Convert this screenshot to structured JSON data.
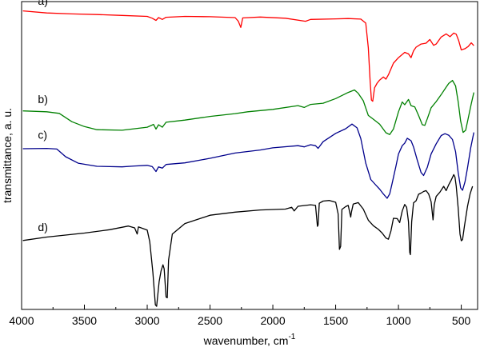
{
  "chart_data": {
    "type": "line",
    "title": "",
    "xlabel": "wavenumber, cm",
    "xlabel_sup": "-1",
    "ylabel": "transmittance, a. u.",
    "xlim": [
      4000,
      370
    ],
    "x_reversed": true,
    "x_ticks": [
      4000,
      3500,
      3000,
      2500,
      2000,
      1500,
      1000,
      500
    ],
    "y_ticks_shown": false,
    "ylim": [
      0,
      100
    ],
    "grid": false,
    "series": [
      {
        "name": "a)",
        "color": "#ff0000",
        "points": [
          [
            3990,
            97
          ],
          [
            3800,
            96.3
          ],
          [
            3600,
            96
          ],
          [
            3400,
            95.8
          ],
          [
            3200,
            95.5
          ],
          [
            3000,
            95.2
          ],
          [
            2960,
            94.6
          ],
          [
            2930,
            93.9
          ],
          [
            2910,
            94.8
          ],
          [
            2880,
            94.2
          ],
          [
            2850,
            94.9
          ],
          [
            2700,
            95.2
          ],
          [
            2500,
            95.1
          ],
          [
            2300,
            94.8
          ],
          [
            2275,
            93.6
          ],
          [
            2255,
            91.6
          ],
          [
            2240,
            94.7
          ],
          [
            2100,
            95
          ],
          [
            1900,
            94.6
          ],
          [
            1740,
            93.6
          ],
          [
            1700,
            94.2
          ],
          [
            1500,
            94.4
          ],
          [
            1400,
            94.5
          ],
          [
            1300,
            94.3
          ],
          [
            1260,
            93
          ],
          [
            1240,
            85
          ],
          [
            1225,
            74
          ],
          [
            1215,
            68
          ],
          [
            1205,
            67.6
          ],
          [
            1190,
            72
          ],
          [
            1170,
            73.5
          ],
          [
            1150,
            74.5
          ],
          [
            1120,
            75.5
          ],
          [
            1100,
            74.8
          ],
          [
            1080,
            76.2
          ],
          [
            1040,
            80
          ],
          [
            1000,
            81.8
          ],
          [
            950,
            83.5
          ],
          [
            920,
            83
          ],
          [
            900,
            81.8
          ],
          [
            880,
            84
          ],
          [
            860,
            85.2
          ],
          [
            820,
            86.2
          ],
          [
            780,
            86.5
          ],
          [
            750,
            87.7
          ],
          [
            720,
            85.8
          ],
          [
            700,
            86.2
          ],
          [
            660,
            88.5
          ],
          [
            620,
            89.5
          ],
          [
            590,
            88.6
          ],
          [
            560,
            89.8
          ],
          [
            540,
            89.4
          ],
          [
            520,
            87.3
          ],
          [
            500,
            84.3
          ],
          [
            470,
            84.7
          ],
          [
            445,
            85.4
          ],
          [
            420,
            86.6
          ],
          [
            400,
            85.7
          ]
        ]
      },
      {
        "name": "b)",
        "color": "#008000",
        "points": [
          [
            3990,
            64.5
          ],
          [
            3800,
            64.2
          ],
          [
            3700,
            63.7
          ],
          [
            3600,
            61
          ],
          [
            3500,
            59.4
          ],
          [
            3400,
            58.4
          ],
          [
            3200,
            58.2
          ],
          [
            3000,
            59.2
          ],
          [
            2950,
            60.1
          ],
          [
            2930,
            58.6
          ],
          [
            2910,
            60
          ],
          [
            2880,
            59.2
          ],
          [
            2850,
            60.8
          ],
          [
            2700,
            61.5
          ],
          [
            2500,
            62.7
          ],
          [
            2300,
            63.6
          ],
          [
            2200,
            64.2
          ],
          [
            2000,
            65
          ],
          [
            1800,
            66.2
          ],
          [
            1750,
            65.6
          ],
          [
            1700,
            66.6
          ],
          [
            1600,
            67
          ],
          [
            1500,
            68.5
          ],
          [
            1400,
            70.5
          ],
          [
            1350,
            71.3
          ],
          [
            1320,
            70.2
          ],
          [
            1280,
            67.8
          ],
          [
            1240,
            63
          ],
          [
            1200,
            61.8
          ],
          [
            1150,
            60.2
          ],
          [
            1100,
            57.4
          ],
          [
            1070,
            56.8
          ],
          [
            1040,
            58.6
          ],
          [
            1000,
            64.2
          ],
          [
            970,
            67.4
          ],
          [
            950,
            66.5
          ],
          [
            920,
            68.2
          ],
          [
            900,
            66.2
          ],
          [
            870,
            65.8
          ],
          [
            840,
            63
          ],
          [
            810,
            60
          ],
          [
            790,
            59.8
          ],
          [
            770,
            62
          ],
          [
            740,
            65.5
          ],
          [
            700,
            67.5
          ],
          [
            660,
            69.8
          ],
          [
            620,
            72.2
          ],
          [
            600,
            73.4
          ],
          [
            570,
            74.4
          ],
          [
            545,
            72.6
          ],
          [
            525,
            67.5
          ],
          [
            505,
            61.2
          ],
          [
            485,
            57.5
          ],
          [
            465,
            58.2
          ],
          [
            445,
            62
          ],
          [
            420,
            66.8
          ],
          [
            400,
            70.5
          ]
        ]
      },
      {
        "name": "c)",
        "color": "#00008b",
        "points": [
          [
            3990,
            52.2
          ],
          [
            3800,
            52.3
          ],
          [
            3720,
            52.1
          ],
          [
            3650,
            49.6
          ],
          [
            3550,
            47.5
          ],
          [
            3400,
            46.5
          ],
          [
            3200,
            46.3
          ],
          [
            3100,
            46.6
          ],
          [
            3000,
            46.8
          ],
          [
            2960,
            46.4
          ],
          [
            2930,
            44.8
          ],
          [
            2910,
            46.3
          ],
          [
            2880,
            45.9
          ],
          [
            2850,
            47.1
          ],
          [
            2700,
            47.6
          ],
          [
            2500,
            49.1
          ],
          [
            2300,
            50.8
          ],
          [
            2100,
            51.8
          ],
          [
            2000,
            52.5
          ],
          [
            1800,
            53.2
          ],
          [
            1750,
            52.8
          ],
          [
            1700,
            53.5
          ],
          [
            1660,
            53.2
          ],
          [
            1640,
            52.3
          ],
          [
            1600,
            54.5
          ],
          [
            1500,
            57.2
          ],
          [
            1420,
            58.7
          ],
          [
            1370,
            60.2
          ],
          [
            1330,
            59
          ],
          [
            1300,
            55.5
          ],
          [
            1260,
            47.5
          ],
          [
            1220,
            42.2
          ],
          [
            1180,
            40.4
          ],
          [
            1150,
            39.1
          ],
          [
            1120,
            37.5
          ],
          [
            1090,
            36.1
          ],
          [
            1070,
            37.5
          ],
          [
            1050,
            41
          ],
          [
            1020,
            46.5
          ],
          [
            1000,
            50.5
          ],
          [
            970,
            53.2
          ],
          [
            950,
            54
          ],
          [
            930,
            55.6
          ],
          [
            900,
            54.8
          ],
          [
            880,
            52.8
          ],
          [
            850,
            48.5
          ],
          [
            820,
            44.5
          ],
          [
            800,
            43.5
          ],
          [
            770,
            46.2
          ],
          [
            740,
            50.5
          ],
          [
            700,
            53.8
          ],
          [
            660,
            56.5
          ],
          [
            630,
            57.1
          ],
          [
            600,
            56.6
          ],
          [
            570,
            55.2
          ],
          [
            545,
            51.2
          ],
          [
            525,
            44.5
          ],
          [
            505,
            39.5
          ],
          [
            490,
            38.7
          ],
          [
            470,
            41.5
          ],
          [
            450,
            46
          ],
          [
            425,
            52.5
          ],
          [
            400,
            57.5
          ]
        ]
      },
      {
        "name": "d)",
        "color": "#000000",
        "points": [
          [
            3990,
            22.4
          ],
          [
            3800,
            23.5
          ],
          [
            3500,
            24.8
          ],
          [
            3300,
            25.9
          ],
          [
            3150,
            27.1
          ],
          [
            3100,
            26.5
          ],
          [
            3080,
            24.5
          ],
          [
            3070,
            26.8
          ],
          [
            3000,
            25.8
          ],
          [
            2980,
            22
          ],
          [
            2955,
            12
          ],
          [
            2935,
            1.5
          ],
          [
            2925,
            1
          ],
          [
            2905,
            9
          ],
          [
            2890,
            12.5
          ],
          [
            2875,
            14.5
          ],
          [
            2865,
            13.2
          ],
          [
            2850,
            4
          ],
          [
            2840,
            3.8
          ],
          [
            2830,
            16
          ],
          [
            2800,
            24.5
          ],
          [
            2700,
            27.9
          ],
          [
            2500,
            30.6
          ],
          [
            2300,
            31.6
          ],
          [
            2100,
            32.3
          ],
          [
            1900,
            32.6
          ],
          [
            1850,
            33.2
          ],
          [
            1830,
            32
          ],
          [
            1800,
            33.5
          ],
          [
            1700,
            34
          ],
          [
            1660,
            33.8
          ],
          [
            1645,
            27
          ],
          [
            1640,
            27.4
          ],
          [
            1630,
            34.5
          ],
          [
            1600,
            35.2
          ],
          [
            1550,
            35.4
          ],
          [
            1500,
            34.8
          ],
          [
            1480,
            31
          ],
          [
            1470,
            19.5
          ],
          [
            1460,
            20.5
          ],
          [
            1450,
            32.5
          ],
          [
            1420,
            33.4
          ],
          [
            1400,
            33.8
          ],
          [
            1380,
            30
          ],
          [
            1375,
            31.5
          ],
          [
            1360,
            34.2
          ],
          [
            1320,
            34.7
          ],
          [
            1280,
            32.6
          ],
          [
            1240,
            29
          ],
          [
            1200,
            27.2
          ],
          [
            1160,
            26
          ],
          [
            1130,
            24.8
          ],
          [
            1100,
            23.2
          ],
          [
            1080,
            22.8
          ],
          [
            1060,
            25.5
          ],
          [
            1040,
            29.6
          ],
          [
            1010,
            29.5
          ],
          [
            990,
            28.2
          ],
          [
            970,
            32
          ],
          [
            950,
            34.1
          ],
          [
            935,
            33.2
          ],
          [
            920,
            28.5
          ],
          [
            910,
            18.5
          ],
          [
            905,
            17.8
          ],
          [
            895,
            28.5
          ],
          [
            880,
            34.6
          ],
          [
            860,
            35.3
          ],
          [
            840,
            37.4
          ],
          [
            820,
            37.8
          ],
          [
            800,
            38.3
          ],
          [
            780,
            38.6
          ],
          [
            760,
            37.5
          ],
          [
            740,
            35
          ],
          [
            725,
            29.1
          ],
          [
            715,
            34
          ],
          [
            700,
            36.7
          ],
          [
            670,
            38.1
          ],
          [
            640,
            40
          ],
          [
            620,
            38.6
          ],
          [
            600,
            40.5
          ],
          [
            580,
            42
          ],
          [
            560,
            43.8
          ],
          [
            550,
            43
          ],
          [
            540,
            40
          ],
          [
            525,
            33
          ],
          [
            510,
            24.5
          ],
          [
            500,
            22.3
          ],
          [
            490,
            22.7
          ],
          [
            475,
            27
          ],
          [
            450,
            33.5
          ],
          [
            430,
            37.5
          ],
          [
            410,
            40
          ]
        ]
      }
    ],
    "trace_labels": [
      {
        "text": "a)",
        "x": 3870,
        "y": 99
      },
      {
        "text": "b)",
        "x": 3870,
        "y": 67
      },
      {
        "text": "c)",
        "x": 3870,
        "y": 55.5
      },
      {
        "text": "d)",
        "x": 3870,
        "y": 25.5
      }
    ]
  }
}
